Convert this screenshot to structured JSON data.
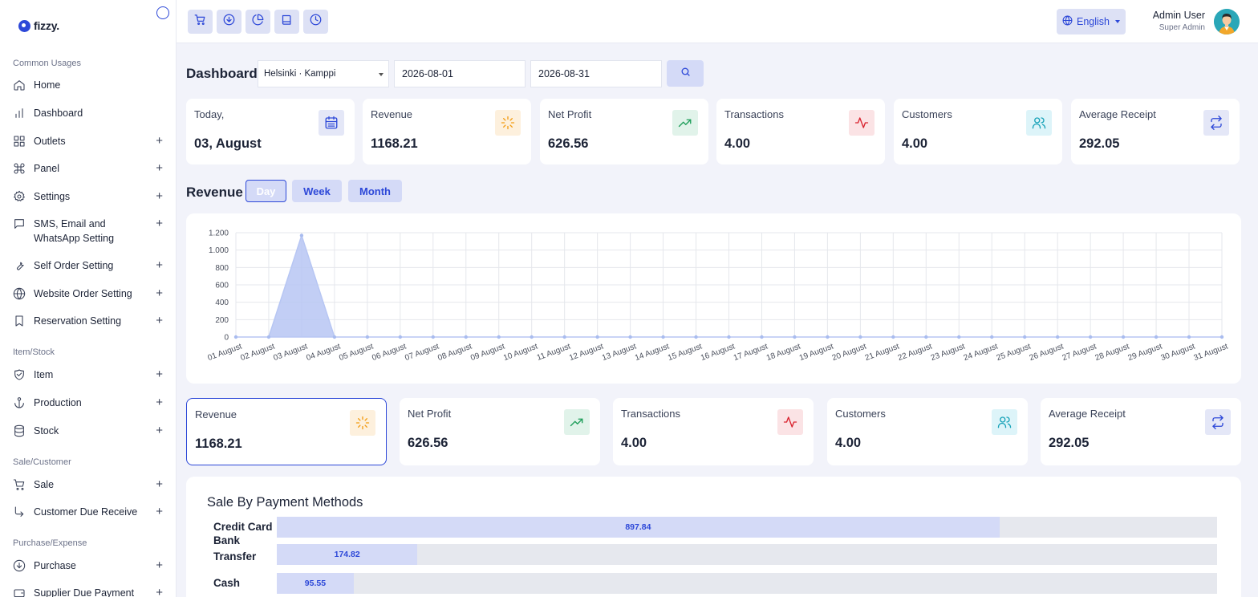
{
  "logo": {
    "text": "fizzy."
  },
  "sidebar": {
    "sections": [
      {
        "title": "Common Usages",
        "items": [
          {
            "label": "Home",
            "icon": "home-icon",
            "expandable": false
          },
          {
            "label": "Dashboard",
            "icon": "chart-bars-icon",
            "expandable": false
          },
          {
            "label": "Outlets",
            "icon": "grid-icon",
            "expandable": true
          },
          {
            "label": "Panel",
            "icon": "command-icon",
            "expandable": true
          },
          {
            "label": "Settings",
            "icon": "gear-icon",
            "expandable": true
          },
          {
            "label": "SMS, Email and WhatsApp Setting",
            "icon": "message-icon",
            "expandable": true
          },
          {
            "label": "Self Order Setting",
            "icon": "wrench-icon",
            "expandable": true
          },
          {
            "label": "Website Order Setting",
            "icon": "globe-icon",
            "expandable": true
          },
          {
            "label": "Reservation Setting",
            "icon": "bookmark-icon",
            "expandable": true
          }
        ]
      },
      {
        "title": "Item/Stock",
        "items": [
          {
            "label": "Item",
            "icon": "shield-check-icon",
            "expandable": true
          },
          {
            "label": "Production",
            "icon": "anchor-icon",
            "expandable": true
          },
          {
            "label": "Stock",
            "icon": "database-icon",
            "expandable": true
          }
        ]
      },
      {
        "title": "Sale/Customer",
        "items": [
          {
            "label": "Sale",
            "icon": "cart-icon",
            "expandable": true
          },
          {
            "label": "Customer Due Receive",
            "icon": "corner-arrow-icon",
            "expandable": true
          }
        ]
      },
      {
        "title": "Purchase/Expense",
        "items": [
          {
            "label": "Purchase",
            "icon": "download-circle-icon",
            "expandable": true
          },
          {
            "label": "Supplier Due Payment",
            "icon": "wallet-icon",
            "expandable": true
          }
        ]
      }
    ]
  },
  "topbar": {
    "quick_buttons": [
      "cart-icon",
      "download-circle-icon",
      "pie-chart-icon",
      "book-icon",
      "clock-icon"
    ],
    "language": "English",
    "user_name": "Admin User",
    "user_role": "Super Admin"
  },
  "filters": {
    "title": "Dashboard",
    "outlet": "Helsinki · Kamppi",
    "start_date": "2026-08-01",
    "end_date": "2026-08-31"
  },
  "top_cards": [
    {
      "title": "Today,",
      "value": "03, August",
      "icon": "calendar-icon",
      "bg": "#e4e7f7",
      "color": "#2d48d8"
    },
    {
      "title": "Revenue",
      "value": "1168.21",
      "icon": "loader-icon",
      "bg": "#fdf0dd",
      "color": "#f39c12"
    },
    {
      "title": "Net Profit",
      "value": "626.56",
      "icon": "trending-up-icon",
      "bg": "#e1f3ea",
      "color": "#1e9e5a"
    },
    {
      "title": "Transactions",
      "value": "4.00",
      "icon": "activity-icon",
      "bg": "#fbe3e5",
      "color": "#d9232f"
    },
    {
      "title": "Customers",
      "value": "4.00",
      "icon": "users-icon",
      "bg": "#ddf4f9",
      "color": "#17a2b8"
    },
    {
      "title": "Average Receipt",
      "value": "292.05",
      "icon": "repeat-icon",
      "bg": "#e4e7f7",
      "color": "#2d48d8"
    }
  ],
  "revenue_section": {
    "title": "Revenue",
    "tabs": [
      "Day",
      "Week",
      "Month"
    ],
    "active_tab": "Day"
  },
  "chart_data": {
    "type": "area",
    "title": "",
    "xlabel": "",
    "ylabel": "",
    "ylim": [
      0,
      1200
    ],
    "yticks": [
      0,
      200,
      400,
      600,
      800,
      1000,
      1200
    ],
    "ytick_labels": [
      "0",
      "200",
      "400",
      "600",
      "800",
      "1.000",
      "1.200"
    ],
    "grid": true,
    "color": "#b7c6f3",
    "categories": [
      "01 August",
      "02 August",
      "03 August",
      "04 August",
      "05 August",
      "06 August",
      "07 August",
      "08 August",
      "09 August",
      "10 August",
      "11 August",
      "12 August",
      "13 August",
      "14 August",
      "15 August",
      "16 August",
      "17 August",
      "18 August",
      "19 August",
      "20 August",
      "21 August",
      "22 August",
      "23 August",
      "24 August",
      "25 August",
      "26 August",
      "27 August",
      "28 August",
      "29 August",
      "30 August",
      "31 August"
    ],
    "series": [
      {
        "values": [
          0,
          0,
          1168.21,
          0,
          0,
          0,
          0,
          0,
          0,
          0,
          0,
          0,
          0,
          0,
          0,
          0,
          0,
          0,
          0,
          0,
          0,
          0,
          0,
          0,
          0,
          0,
          0,
          0,
          0,
          0,
          0
        ]
      }
    ]
  },
  "summary_cards": [
    {
      "title": "Revenue",
      "value": "1168.21",
      "icon": "loader-icon",
      "bg": "#fdf0dd",
      "color": "#f39c12",
      "active": true
    },
    {
      "title": "Net Profit",
      "value": "626.56",
      "icon": "trending-up-icon",
      "bg": "#e1f3ea",
      "color": "#1e9e5a",
      "active": false
    },
    {
      "title": "Transactions",
      "value": "4.00",
      "icon": "activity-icon",
      "bg": "#fbe3e5",
      "color": "#d9232f",
      "active": false
    },
    {
      "title": "Customers",
      "value": "4.00",
      "icon": "users-icon",
      "bg": "#ddf4f9",
      "color": "#17a2b8",
      "active": false
    },
    {
      "title": "Average Receipt",
      "value": "292.05",
      "icon": "repeat-icon",
      "bg": "#e4e7f7",
      "color": "#2d48d8",
      "active": false
    }
  ],
  "payment_methods": {
    "title": "Sale By Payment Methods",
    "max": 1168.21,
    "items": [
      {
        "label": "Credit Card",
        "value": 897.84,
        "display": "897.84"
      },
      {
        "label": "Bank Transfer",
        "value": 174.82,
        "display": "174.82"
      },
      {
        "label": "Cash",
        "value": 95.55,
        "display": "95.55"
      }
    ]
  }
}
